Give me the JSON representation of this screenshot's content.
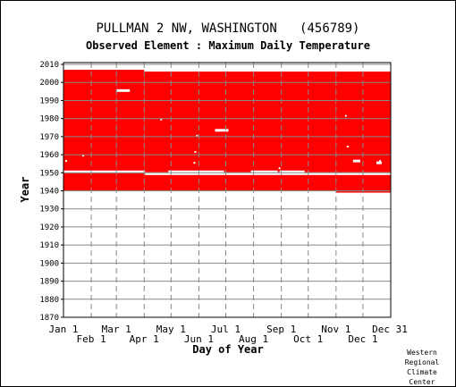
{
  "chart_data": {
    "type": "heatmap",
    "title": "PULLMAN 2 NW, WASHINGTON   (456789)",
    "subtitle": "Observed Element : Maximum Daily Temperature",
    "xlabel": "Day of Year",
    "ylabel": "Year",
    "x_ticks_upper": [
      "Jan 1",
      "Mar 1",
      "May 1",
      "Jul 1",
      "Sep 1",
      "Nov 1",
      "Dec 31"
    ],
    "x_ticks_lower": [
      "Feb 1",
      "Apr 1",
      "Jun 1",
      "Aug 1",
      "Oct 1",
      "Dec 1"
    ],
    "x_tick_days": {
      "Jan 1": 1,
      "Feb 1": 32,
      "Mar 1": 60,
      "Apr 1": 91,
      "May 1": 121,
      "Jun 1": 152,
      "Jul 1": 182,
      "Aug 1": 213,
      "Sep 1": 244,
      "Oct 1": 274,
      "Nov 1": 305,
      "Dec 1": 335,
      "Dec 31": 365
    },
    "xlim": [
      1,
      366
    ],
    "ylim": [
      1870,
      2011
    ],
    "y_ticks": [
      1870,
      1880,
      1890,
      1900,
      1910,
      1920,
      1930,
      1940,
      1950,
      1960,
      1970,
      1980,
      1990,
      2000,
      2010
    ],
    "grid": true,
    "data_color": "#ff0000",
    "coverage": [
      {
        "start_day": 1,
        "end_day": 60,
        "first_year": 1940,
        "last_year": 2006
      },
      {
        "start_day": 60,
        "end_day": 91,
        "first_year": 1940,
        "last_year": 2006
      },
      {
        "start_day": 91,
        "end_day": 305,
        "first_year": 1940,
        "last_year": 2005
      },
      {
        "start_day": 305,
        "end_day": 366,
        "first_year": 1939,
        "last_year": 2005
      }
    ],
    "missing": [
      {
        "start_day": 1,
        "end_day": 92,
        "year": 1950
      },
      {
        "start_day": 92,
        "end_day": 366,
        "year": 1949
      },
      {
        "start_day": 60,
        "end_day": 75,
        "year": 1995
      },
      {
        "start_day": 170,
        "end_day": 185,
        "year": 1973
      },
      {
        "start_day": 118,
        "end_day": 180,
        "year": 1950
      },
      {
        "start_day": 210,
        "end_day": 240,
        "year": 1950
      },
      {
        "start_day": 242,
        "end_day": 270,
        "year": 1950
      },
      {
        "start_day": 324,
        "end_day": 332,
        "year": 1956
      },
      {
        "start_day": 350,
        "end_day": 356,
        "year": 1955
      }
    ],
    "dotted_gaps": [
      {
        "day": 4,
        "year": 1956
      },
      {
        "day": 23,
        "year": 1959
      },
      {
        "day": 110,
        "year": 1979
      },
      {
        "day": 147,
        "year": 1955
      },
      {
        "day": 148,
        "year": 1961
      },
      {
        "day": 150,
        "year": 1970
      },
      {
        "day": 242,
        "year": 1952
      },
      {
        "day": 316,
        "year": 1981
      },
      {
        "day": 318,
        "year": 1964
      },
      {
        "day": 354,
        "year": 1956
      }
    ]
  },
  "credit": [
    "Western",
    "Regional",
    "Climate",
    "Center"
  ]
}
